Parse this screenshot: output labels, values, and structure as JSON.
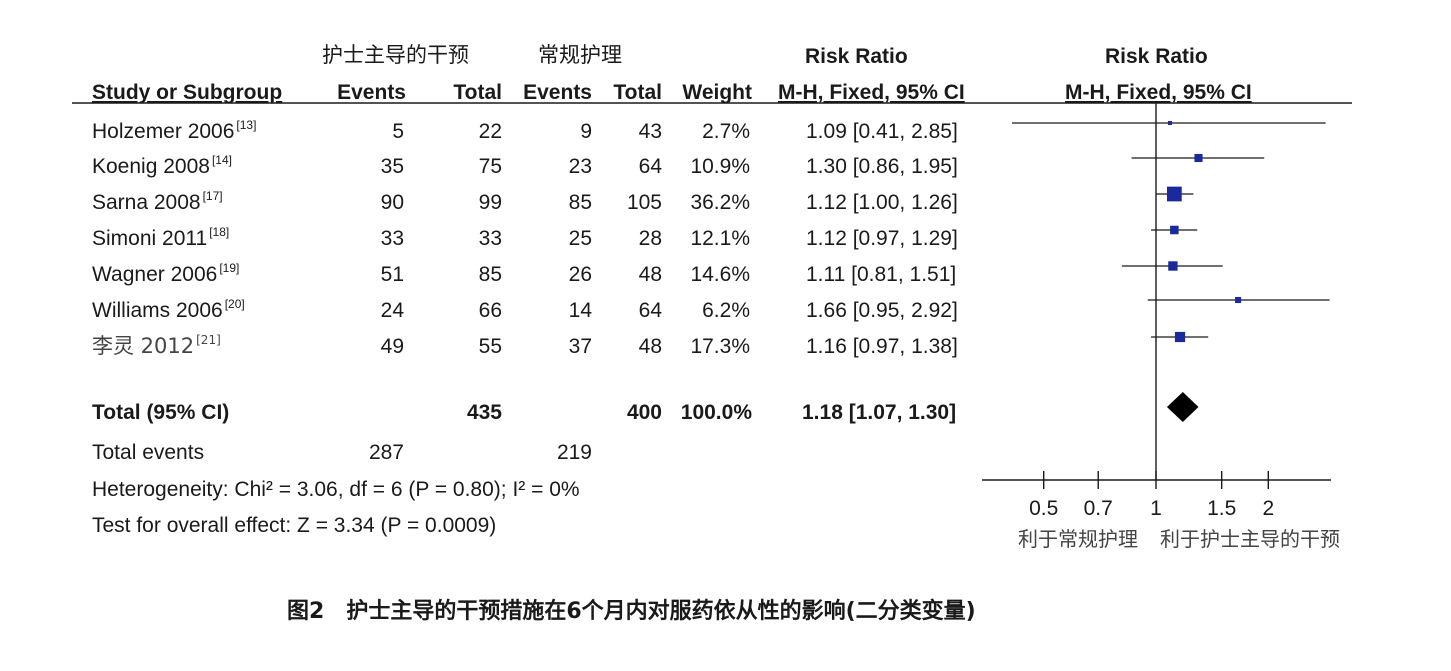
{
  "header": {
    "group1": "护士主导的干预",
    "group2": "常规护理",
    "rr_top_left": "Risk Ratio",
    "rr_top_right": "Risk Ratio",
    "study_col": "Study or Subgroup",
    "events1": "Events",
    "total1": "Total",
    "events2": "Events",
    "total2": "Total",
    "weight": "Weight",
    "method_left": "M-H, Fixed, 95% CI",
    "method_right": "M-H, Fixed, 95% CI"
  },
  "rows": [
    {
      "study": "Holzemer 2006",
      "ref": "[13]",
      "e1": "5",
      "t1": "22",
      "e2": "9",
      "t2": "43",
      "weight": "2.7%",
      "ci": "1.09 [0.41, 2.85]"
    },
    {
      "study": "Koenig 2008",
      "ref": "[14]",
      "e1": "35",
      "t1": "75",
      "e2": "23",
      "t2": "64",
      "weight": "10.9%",
      "ci": "1.30 [0.86, 1.95]"
    },
    {
      "study": "Sarna 2008",
      "ref": "[17]",
      "e1": "90",
      "t1": "99",
      "e2": "85",
      "t2": "105",
      "weight": "36.2%",
      "ci": "1.12 [1.00, 1.26]"
    },
    {
      "study": "Simoni 2011",
      "ref": "[18]",
      "e1": "33",
      "t1": "33",
      "e2": "25",
      "t2": "28",
      "weight": "12.1%",
      "ci": "1.12 [0.97, 1.29]"
    },
    {
      "study": "Wagner 2006",
      "ref": "[19]",
      "e1": "51",
      "t1": "85",
      "e2": "26",
      "t2": "48",
      "weight": "14.6%",
      "ci": "1.11 [0.81, 1.51]"
    },
    {
      "study": "Williams 2006",
      "ref": "[20]",
      "e1": "24",
      "t1": "66",
      "e2": "14",
      "t2": "64",
      "weight": "6.2%",
      "ci": "1.66 [0.95, 2.92]"
    },
    {
      "study": "李灵 2012",
      "ref": "[21]",
      "e1": "49",
      "t1": "55",
      "e2": "37",
      "t2": "48",
      "weight": "17.3%",
      "ci": "1.16 [0.97, 1.38]"
    }
  ],
  "total": {
    "label": "Total (95% CI)",
    "t1": "435",
    "t2": "400",
    "weight": "100.0%",
    "ci": "1.18 [1.07, 1.30]"
  },
  "total_events": {
    "label": "Total events",
    "e1": "287",
    "e2": "219"
  },
  "heterogeneity": "Heterogeneity: Chi² = 3.06, df = 6 (P = 0.80); I² = 0%",
  "overall_effect": "Test for overall effect: Z = 3.34 (P = 0.0009)",
  "axis": {
    "favours_left": "利于常规护理",
    "favours_right": "利于护士主导的干预"
  },
  "caption": {
    "figure_no": "图2",
    "title": "护士主导的干预措施在6个月内对服药依从性的影响(二分类变量)"
  },
  "colors": {
    "square": "#1a2a9c",
    "diamond": "#000000",
    "line": "#1a1a1a"
  },
  "chart_data": {
    "type": "forest",
    "scale": "log",
    "xlim": [
      0.45,
      3.0
    ],
    "ticks": [
      0.5,
      0.7,
      1,
      1.5,
      2
    ],
    "tick_labels": [
      "0.5",
      "0.7",
      "1",
      "1.5",
      "2"
    ],
    "reference_line": 1,
    "studies": [
      {
        "name": "Holzemer 2006",
        "rr": 1.09,
        "lo": 0.41,
        "hi": 2.85,
        "weight": 2.7
      },
      {
        "name": "Koenig 2008",
        "rr": 1.3,
        "lo": 0.86,
        "hi": 1.95,
        "weight": 10.9
      },
      {
        "name": "Sarna 2008",
        "rr": 1.12,
        "lo": 1.0,
        "hi": 1.26,
        "weight": 36.2
      },
      {
        "name": "Simoni 2011",
        "rr": 1.12,
        "lo": 0.97,
        "hi": 1.29,
        "weight": 12.1
      },
      {
        "name": "Wagner 2006",
        "rr": 1.11,
        "lo": 0.81,
        "hi": 1.51,
        "weight": 14.6
      },
      {
        "name": "Williams 2006",
        "rr": 1.66,
        "lo": 0.95,
        "hi": 2.92,
        "weight": 6.2
      },
      {
        "name": "李灵 2012",
        "rr": 1.16,
        "lo": 0.97,
        "hi": 1.38,
        "weight": 17.3
      }
    ],
    "pooled": {
      "rr": 1.18,
      "lo": 1.07,
      "hi": 1.3
    }
  }
}
